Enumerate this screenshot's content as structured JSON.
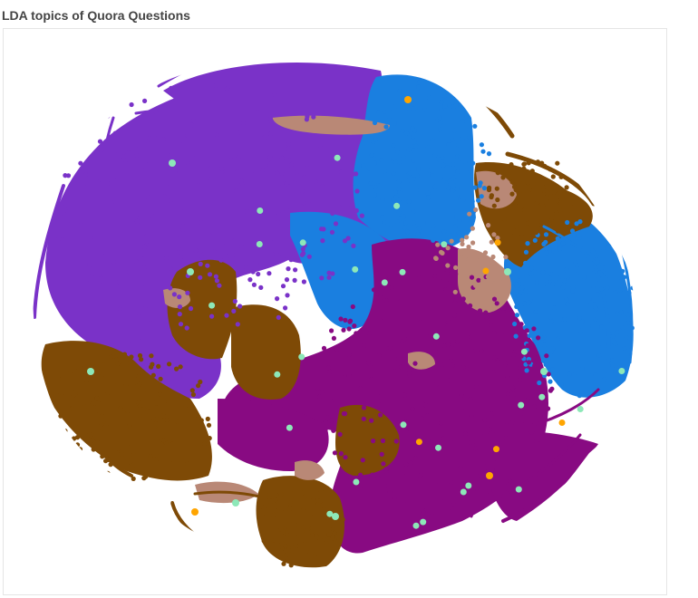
{
  "chart_data": {
    "type": "scatter",
    "title": "LDA topics of Quora Questions",
    "xlabel": "",
    "ylabel": "",
    "grid": false,
    "legend": "none",
    "topics": [
      {
        "id": "topic-violet",
        "color": "#7a32c8"
      },
      {
        "id": "topic-blue",
        "color": "#1a7fe0"
      },
      {
        "id": "topic-brown",
        "color": "#7e4a06"
      },
      {
        "id": "topic-magenta",
        "color": "#880a82"
      },
      {
        "id": "topic-tan",
        "color": "#b98876"
      },
      {
        "id": "topic-mint",
        "color": "#8de8b8"
      },
      {
        "id": "topic-orange",
        "color": "#ffa500"
      }
    ]
  }
}
